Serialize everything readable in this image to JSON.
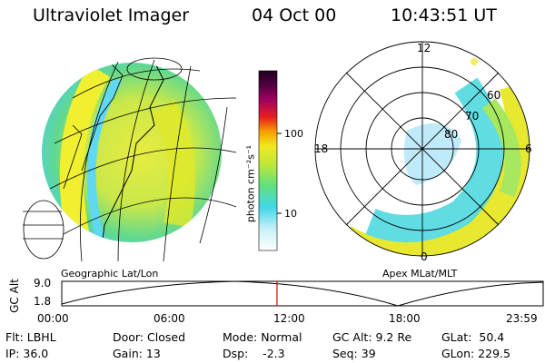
{
  "header": {
    "title": "Ultraviolet Imager",
    "date": "04 Oct 00",
    "time": "10:43:51 UT"
  },
  "colorbar": {
    "unit_label": "photon cm⁻²s⁻¹",
    "ticks": [
      "100",
      "10"
    ]
  },
  "geo_panel": {
    "caption": "Geographic Lat/Lon"
  },
  "polar_panel": {
    "caption": "Apex MLat/MLT",
    "mlt_labels": [
      "12",
      "18",
      "6",
      "0"
    ],
    "mlat_labels": [
      "60",
      "70",
      "80"
    ]
  },
  "orbit_plot": {
    "ylabel": "GC Alt",
    "y_ticks": [
      "9.0",
      "1.8"
    ],
    "x_ticks": [
      "00:00",
      "06:00",
      "12:00",
      "18:00",
      "23:59"
    ],
    "current_marker_hour": 10.73,
    "marker_color": "#e00000"
  },
  "status": {
    "filter": "Flt: LBHL",
    "ip": "IP: 36.0",
    "door": "Door: Closed",
    "gain": "Gain: 13",
    "mode": "Mode: Normal",
    "dsp": "Dsp:    -2.3",
    "gc_alt": "GC Alt: 9.2 Re",
    "seq": "Seq: 39",
    "glat": "GLat:  50.4",
    "glon": "GLon: 229.5"
  }
}
